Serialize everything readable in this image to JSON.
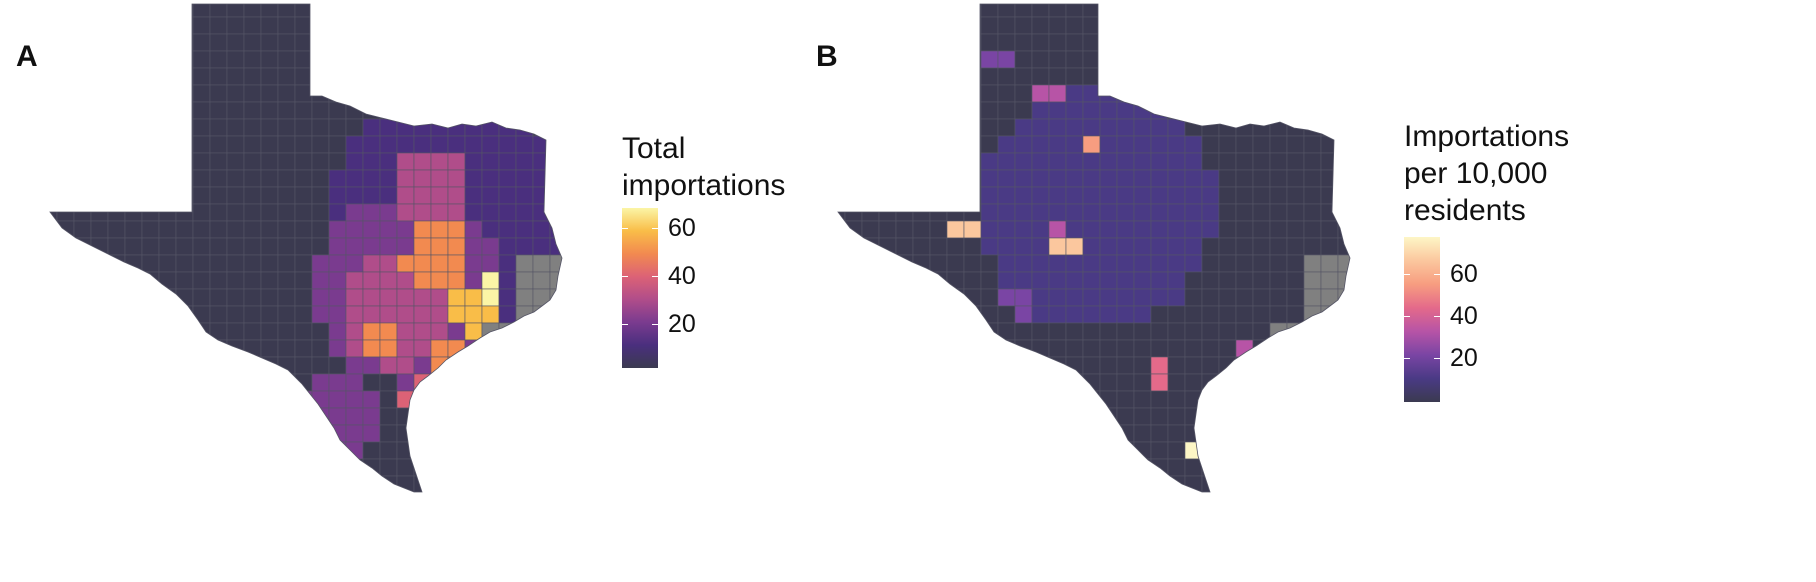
{
  "panels": [
    {
      "letter": "A",
      "legend_title_lines": [
        "Total",
        "importations"
      ],
      "ticks": [
        "20",
        "40",
        "60"
      ],
      "tick_values": [
        20,
        40,
        60
      ],
      "scale_range": [
        0,
        67
      ],
      "palette": [
        "#3b3a50",
        "#4a2f7e",
        "#7a3b8f",
        "#b04d8a",
        "#dc6276",
        "#f28a50",
        "#f9bd48",
        "#fbf5a6"
      ],
      "no_data_color": "#808080"
    },
    {
      "letter": "B",
      "legend_title_lines": [
        "Importations",
        "per 10,000",
        "residents"
      ],
      "ticks": [
        "20",
        "40",
        "60"
      ],
      "tick_values": [
        20,
        40,
        60
      ],
      "scale_range": [
        0,
        78
      ],
      "palette": [
        "#3b3a50",
        "#4a3a85",
        "#7a45a4",
        "#b754a6",
        "#e46a8a",
        "#f79d80",
        "#fbc79e",
        "#fdf6c6"
      ],
      "no_data_color": "#808080"
    }
  ]
}
